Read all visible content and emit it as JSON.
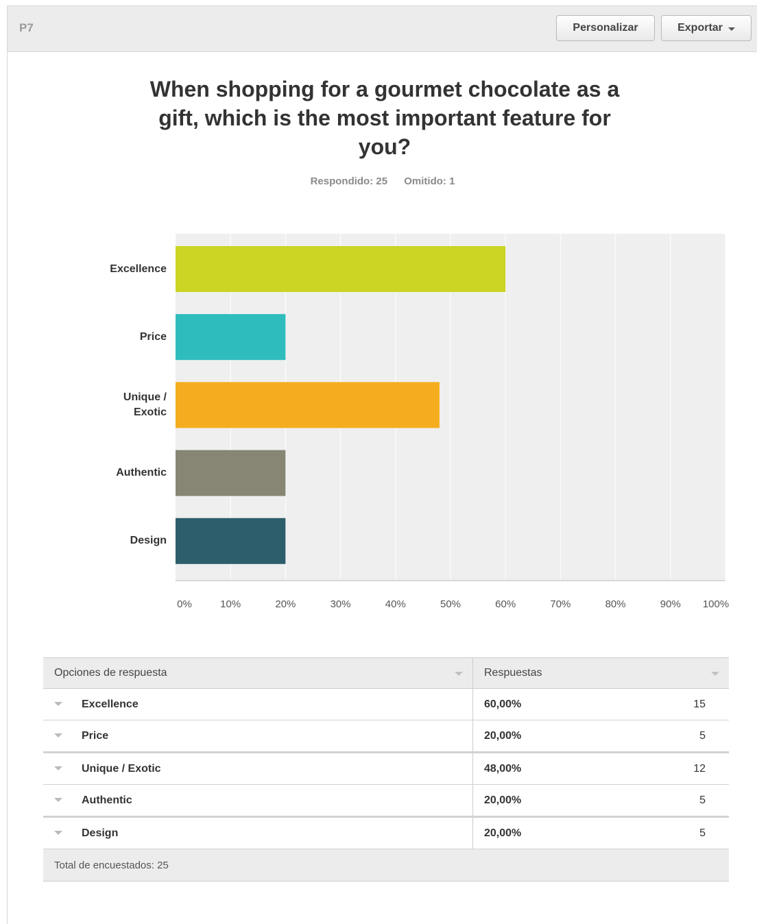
{
  "header": {
    "question_number": "P7",
    "customize_label": "Personalizar",
    "export_label": "Exportar"
  },
  "question": {
    "title": "When shopping for a gourmet chocolate as a gift, which is the most important feature for you?",
    "answered": "Respondido: 25",
    "skipped": "Omitido: 1"
  },
  "chart_data": {
    "type": "bar",
    "orientation": "horizontal",
    "categories": [
      "Excellence",
      "Price",
      "Unique / Exotic",
      "Authentic",
      "Design"
    ],
    "values": [
      60,
      20,
      48,
      20,
      20
    ],
    "colors": [
      "#ccd424",
      "#2fbcbc",
      "#f5ad1f",
      "#878674",
      "#2d5e6b"
    ],
    "xlim": [
      0,
      100
    ],
    "xticks": [
      "0%",
      "10%",
      "20%",
      "30%",
      "40%",
      "50%",
      "60%",
      "70%",
      "80%",
      "90%",
      "100%"
    ],
    "title": "",
    "xlabel": "",
    "ylabel": "",
    "grid": true
  },
  "table": {
    "headers": [
      "Opciones de respuesta",
      "Respuestas"
    ],
    "rows": [
      {
        "option": "Excellence",
        "percent": "60,00%",
        "count": "15"
      },
      {
        "option": "Price",
        "percent": "20,00%",
        "count": "5"
      },
      {
        "option": "Unique / Exotic",
        "percent": "48,00%",
        "count": "12"
      },
      {
        "option": "Authentic",
        "percent": "20,00%",
        "count": "5"
      },
      {
        "option": "Design",
        "percent": "20,00%",
        "count": "5"
      }
    ],
    "footer": "Total de encuestados: 25"
  }
}
